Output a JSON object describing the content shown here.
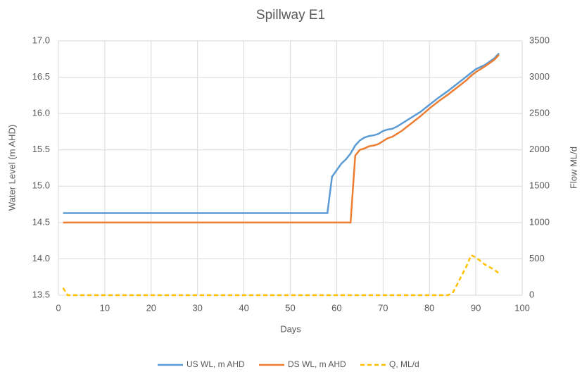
{
  "chart_data": {
    "type": "line",
    "title": "Spillway E1",
    "x_label": "Days",
    "y_label": "Water Level (m AHD)",
    "y2_label": "Flow ML/d",
    "x": [
      1,
      2,
      58,
      59,
      60,
      61,
      62,
      63,
      64,
      65,
      66,
      67,
      68,
      69,
      70,
      71,
      72,
      73,
      74,
      75,
      76,
      78,
      80,
      82,
      84,
      85,
      86,
      88,
      89,
      90,
      92,
      94,
      95
    ],
    "series": [
      {
        "name": "US WL, m AHD",
        "color": "#5b9bd5",
        "axis": "y",
        "dashed": false,
        "values": [
          14.63,
          14.63,
          14.63,
          15.13,
          15.22,
          15.31,
          15.37,
          15.45,
          15.56,
          15.63,
          15.67,
          15.69,
          15.7,
          15.72,
          15.76,
          15.78,
          15.79,
          15.82,
          15.86,
          15.9,
          15.94,
          16.02,
          16.12,
          16.22,
          16.31,
          16.36,
          16.41,
          16.51,
          16.56,
          16.61,
          16.67,
          16.76,
          16.83
        ]
      },
      {
        "name": "DS WL, m AHD",
        "color": "#ed7d31",
        "axis": "y",
        "dashed": false,
        "values": [
          14.5,
          14.5,
          14.5,
          14.5,
          14.5,
          14.5,
          14.5,
          14.5,
          15.42,
          15.5,
          15.52,
          15.55,
          15.56,
          15.58,
          15.62,
          15.66,
          15.68,
          15.72,
          15.76,
          15.81,
          15.86,
          15.96,
          16.07,
          16.17,
          16.26,
          16.31,
          16.36,
          16.46,
          16.52,
          16.57,
          16.65,
          16.74,
          16.81
        ]
      },
      {
        "name": "Q, ML/d",
        "color": "#ffc000",
        "axis": "y2",
        "dashed": true,
        "values": [
          100,
          0,
          0,
          0,
          0,
          0,
          0,
          0,
          0,
          0,
          0,
          0,
          0,
          0,
          0,
          0,
          0,
          0,
          0,
          0,
          0,
          0,
          0,
          0,
          0,
          30,
          150,
          400,
          550,
          520,
          420,
          350,
          300
        ]
      }
    ],
    "xlim": [
      0,
      100
    ],
    "xticks": [
      0,
      10,
      20,
      30,
      40,
      50,
      60,
      70,
      80,
      90,
      100
    ],
    "ylim": [
      13.5,
      17
    ],
    "yticks": [
      13.5,
      {
        "value": 14,
        "label": "14.0"
      },
      14.5,
      {
        "value": 15,
        "label": "15.0"
      },
      15.5,
      {
        "value": 16,
        "label": "16.0"
      },
      16.5,
      {
        "value": 17,
        "label": "17.0"
      }
    ],
    "y2lim": [
      0,
      3500
    ],
    "y2ticks": [
      0,
      500,
      1000,
      1500,
      2000,
      2500,
      3000,
      3500
    ],
    "grid": true,
    "legend": "bottom"
  }
}
